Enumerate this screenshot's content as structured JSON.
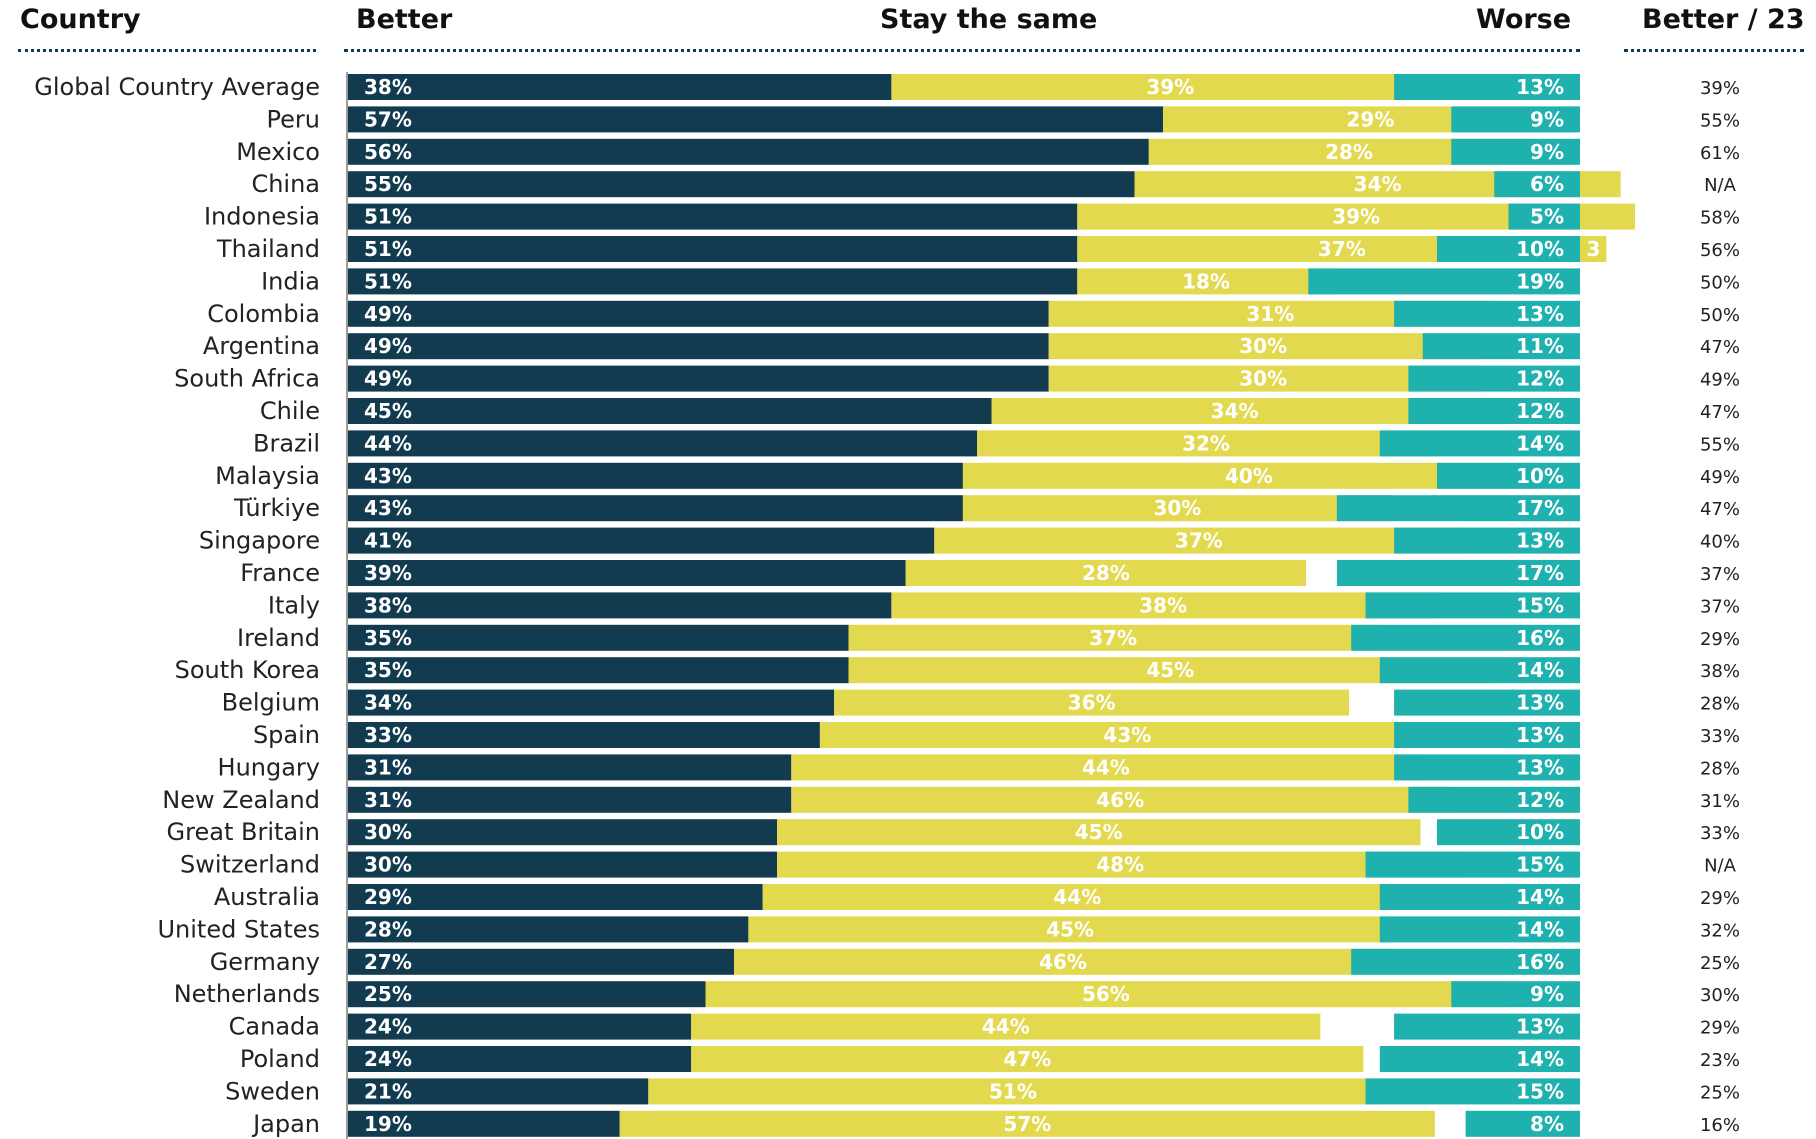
{
  "headers": {
    "country": "Country",
    "better": "Better",
    "same": "Stay the same",
    "worse": "Worse",
    "better23": "Better / 23"
  },
  "colors": {
    "better": "#123b4f",
    "same": "#e3d94f",
    "worse": "#1fb1ad",
    "axis": "#9a9a9a"
  },
  "chart_data": {
    "type": "bar",
    "stacked": true,
    "orientation": "horizontal",
    "categories": [
      "Global Country Average",
      "Peru",
      "Mexico",
      "China",
      "Indonesia",
      "Thailand",
      "India",
      "Colombia",
      "Argentina",
      "South Africa",
      "Chile",
      "Brazil",
      "Malaysia",
      "Türkiye",
      "Singapore",
      "France",
      "Italy",
      "Ireland",
      "South Korea",
      "Belgium",
      "Spain",
      "Hungary",
      "New Zealand",
      "Great Britain",
      "Switzerland",
      "Australia",
      "United States",
      "Germany",
      "Netherlands",
      "Canada",
      "Poland",
      "Sweden",
      "Japan"
    ],
    "series": [
      {
        "name": "Better",
        "values": [
          38,
          57,
          56,
          55,
          51,
          51,
          51,
          49,
          49,
          49,
          45,
          44,
          43,
          43,
          41,
          39,
          38,
          35,
          35,
          34,
          33,
          31,
          31,
          30,
          30,
          29,
          28,
          27,
          25,
          24,
          24,
          21,
          19
        ]
      },
      {
        "name": "Stay the same",
        "values": [
          39,
          29,
          28,
          34,
          39,
          37,
          18,
          31,
          30,
          30,
          34,
          32,
          40,
          30,
          37,
          28,
          38,
          37,
          45,
          36,
          43,
          44,
          46,
          45,
          48,
          44,
          45,
          46,
          56,
          44,
          47,
          51,
          57
        ]
      },
      {
        "name": "Worse",
        "values": [
          13,
          9,
          9,
          6,
          5,
          10,
          19,
          13,
          11,
          12,
          12,
          14,
          10,
          17,
          13,
          17,
          15,
          16,
          14,
          13,
          13,
          13,
          12,
          10,
          15,
          14,
          14,
          16,
          9,
          13,
          14,
          15,
          8
        ]
      }
    ],
    "better23": [
      "39%",
      "55%",
      "61%",
      "N/A",
      "58%",
      "56%",
      "50%",
      "50%",
      "47%",
      "49%",
      "47%",
      "55%",
      "49%",
      "47%",
      "40%",
      "37%",
      "37%",
      "29%",
      "38%",
      "28%",
      "33%",
      "28%",
      "31%",
      "33%",
      "N/A",
      "29%",
      "32%",
      "25%",
      "30%",
      "29%",
      "23%",
      "25%",
      "16%"
    ],
    "extra_labels": [
      {
        "category": "Thailand",
        "text": "3"
      }
    ],
    "unit": "%"
  }
}
